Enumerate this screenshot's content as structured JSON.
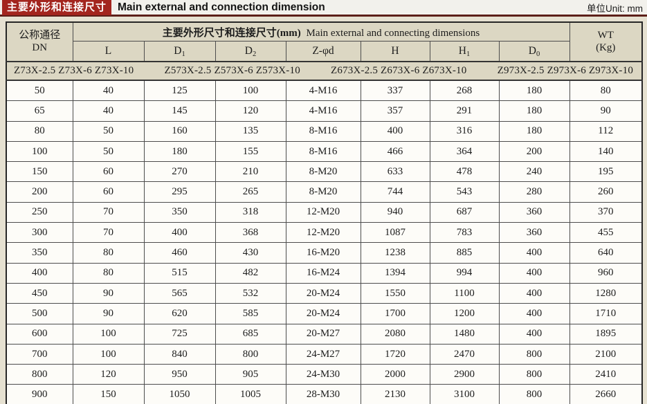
{
  "header": {
    "section_title_zh": "主要外形和连接尺寸",
    "title_en": "Main external and connection dimension",
    "unit_label": "单位Unit: mm"
  },
  "colors": {
    "accent_red": "#a3251e",
    "header_beige": "#dcd7c3",
    "page_beige": "#e6e1d1",
    "title_strip": "#f2f1ec"
  },
  "table": {
    "dn_header": {
      "line1": "公称通径",
      "line2": "DN"
    },
    "main_header": {
      "zh": "主要外形尺寸和连接尺寸(mm)",
      "en": "Main external and connecting dimensions"
    },
    "wt_header": {
      "line1": "WT",
      "line2": "(Kg)"
    },
    "dimension_columns": [
      {
        "base": "L",
        "sub": ""
      },
      {
        "base": "D",
        "sub": "1"
      },
      {
        "base": "D",
        "sub": "2"
      },
      {
        "base": "Z-φd",
        "sub": ""
      },
      {
        "base": "H",
        "sub": ""
      },
      {
        "base": "H",
        "sub": "1"
      },
      {
        "base": "D",
        "sub": "0"
      }
    ],
    "model_groups": [
      "Z73X-2.5 Z73X-6 Z73X-10",
      "Z573X-2.5 Z573X-6 Z573X-10",
      "Z673X-2.5 Z673X-6 Z673X-10",
      "Z973X-2.5 Z973X-6 Z973X-10"
    ],
    "rows": [
      [
        "50",
        "40",
        "125",
        "100",
        "4-M16",
        "337",
        "268",
        "180",
        "80"
      ],
      [
        "65",
        "40",
        "145",
        "120",
        "4-M16",
        "357",
        "291",
        "180",
        "90"
      ],
      [
        "80",
        "50",
        "160",
        "135",
        "8-M16",
        "400",
        "316",
        "180",
        "112"
      ],
      [
        "100",
        "50",
        "180",
        "155",
        "8-M16",
        "466",
        "364",
        "200",
        "140"
      ],
      [
        "150",
        "60",
        "270",
        "210",
        "8-M20",
        "633",
        "478",
        "240",
        "195"
      ],
      [
        "200",
        "60",
        "295",
        "265",
        "8-M20",
        "744",
        "543",
        "280",
        "260"
      ],
      [
        "250",
        "70",
        "350",
        "318",
        "12-M20",
        "940",
        "687",
        "360",
        "370"
      ],
      [
        "300",
        "70",
        "400",
        "368",
        "12-M20",
        "1087",
        "783",
        "360",
        "455"
      ],
      [
        "350",
        "80",
        "460",
        "430",
        "16-M20",
        "1238",
        "885",
        "400",
        "640"
      ],
      [
        "400",
        "80",
        "515",
        "482",
        "16-M24",
        "1394",
        "994",
        "400",
        "960"
      ],
      [
        "450",
        "90",
        "565",
        "532",
        "20-M24",
        "1550",
        "1100",
        "400",
        "1280"
      ],
      [
        "500",
        "90",
        "620",
        "585",
        "20-M24",
        "1700",
        "1200",
        "400",
        "1710"
      ],
      [
        "600",
        "100",
        "725",
        "685",
        "20-M27",
        "2080",
        "1480",
        "400",
        "1895"
      ],
      [
        "700",
        "100",
        "840",
        "800",
        "24-M27",
        "1720",
        "2470",
        "800",
        "2100"
      ],
      [
        "800",
        "120",
        "950",
        "905",
        "24-M30",
        "2000",
        "2900",
        "800",
        "2410"
      ],
      [
        "900",
        "150",
        "1050",
        "1005",
        "28-M30",
        "2130",
        "3100",
        "800",
        "2660"
      ]
    ]
  }
}
